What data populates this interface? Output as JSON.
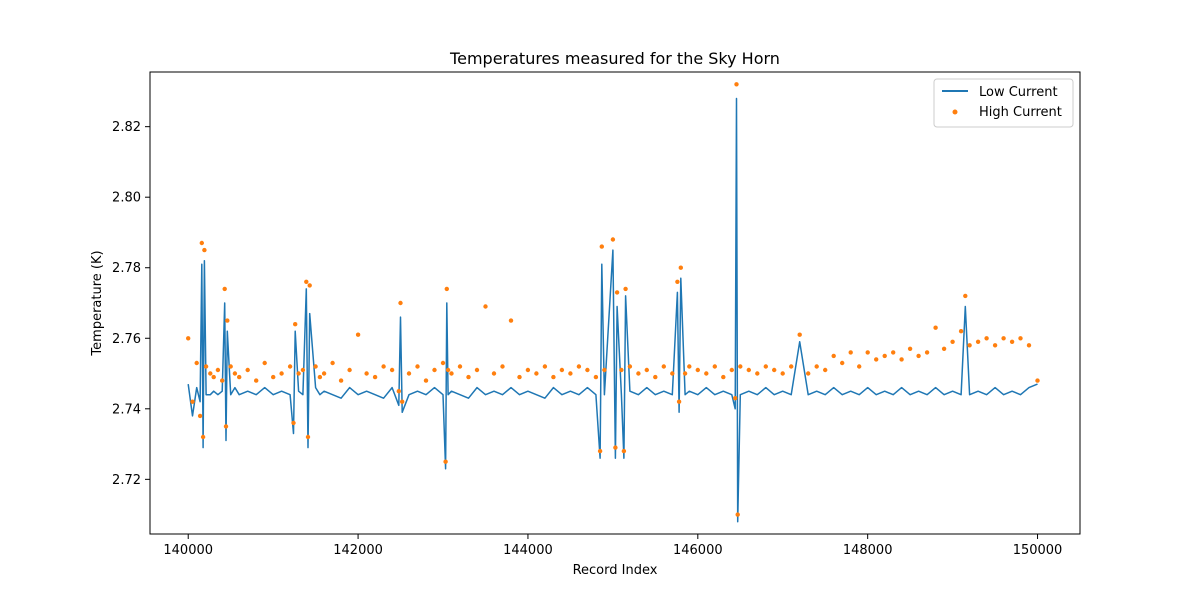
{
  "chart_data": {
    "type": "line",
    "title": "Temperatures measured for the Sky Horn",
    "xlabel": "Record Index",
    "ylabel": "Temperature (K)",
    "xlim": [
      139550,
      150500
    ],
    "ylim": [
      2.7045,
      2.8355
    ],
    "xticks": [
      140000,
      142000,
      144000,
      146000,
      148000,
      150000
    ],
    "xtick_labels": [
      "140000",
      "142000",
      "144000",
      "146000",
      "148000",
      "150000"
    ],
    "yticks": [
      2.72,
      2.74,
      2.76,
      2.78,
      2.8,
      2.82
    ],
    "ytick_labels": [
      "2.72",
      "2.74",
      "2.76",
      "2.78",
      "2.80",
      "2.82"
    ],
    "grid": false,
    "legend_position": "upper right",
    "series": [
      {
        "name": "Low Current",
        "style": "line",
        "color": "#1f77b4",
        "x": [
          140000,
          140050,
          140100,
          140140,
          140160,
          140175,
          140190,
          140210,
          140260,
          140300,
          140350,
          140400,
          140430,
          140445,
          140460,
          140500,
          140550,
          140600,
          140700,
          140800,
          140900,
          141000,
          141100,
          141200,
          141240,
          141260,
          141300,
          141350,
          141390,
          141410,
          141430,
          141500,
          141550,
          141600,
          141700,
          141800,
          141900,
          142000,
          142100,
          142200,
          142300,
          142400,
          142480,
          142500,
          142520,
          142600,
          142700,
          142800,
          142900,
          143000,
          143030,
          143045,
          143060,
          143100,
          143200,
          143300,
          143400,
          143500,
          143600,
          143700,
          143800,
          143900,
          144000,
          144100,
          144200,
          144300,
          144400,
          144500,
          144600,
          144700,
          144800,
          144850,
          144870,
          144900,
          145000,
          145030,
          145050,
          145100,
          145130,
          145150,
          145200,
          145300,
          145400,
          145500,
          145600,
          145700,
          145760,
          145780,
          145800,
          145850,
          145900,
          146000,
          146100,
          146200,
          146300,
          146400,
          146440,
          146455,
          146470,
          146500,
          146600,
          146700,
          146800,
          146900,
          147000,
          147100,
          147200,
          147300,
          147400,
          147500,
          147600,
          147700,
          147800,
          147900,
          148000,
          148100,
          148200,
          148300,
          148400,
          148500,
          148600,
          148700,
          148800,
          148900,
          149000,
          149100,
          149150,
          149200,
          149300,
          149400,
          149500,
          149600,
          149700,
          149800,
          149900,
          150000
        ],
        "y": [
          2.747,
          2.738,
          2.746,
          2.742,
          2.781,
          2.729,
          2.782,
          2.744,
          2.744,
          2.745,
          2.744,
          2.745,
          2.77,
          2.731,
          2.762,
          2.744,
          2.746,
          2.744,
          2.745,
          2.744,
          2.746,
          2.744,
          2.745,
          2.744,
          2.733,
          2.762,
          2.745,
          2.744,
          2.774,
          2.729,
          2.767,
          2.746,
          2.744,
          2.745,
          2.744,
          2.743,
          2.746,
          2.744,
          2.745,
          2.744,
          2.743,
          2.746,
          2.741,
          2.766,
          2.739,
          2.744,
          2.745,
          2.744,
          2.746,
          2.744,
          2.723,
          2.77,
          2.744,
          2.745,
          2.744,
          2.743,
          2.746,
          2.744,
          2.745,
          2.744,
          2.746,
          2.744,
          2.745,
          2.744,
          2.743,
          2.746,
          2.744,
          2.745,
          2.744,
          2.746,
          2.744,
          2.726,
          2.781,
          2.744,
          2.785,
          2.726,
          2.769,
          2.744,
          2.726,
          2.772,
          2.745,
          2.744,
          2.746,
          2.744,
          2.745,
          2.744,
          2.773,
          2.739,
          2.777,
          2.744,
          2.745,
          2.744,
          2.746,
          2.744,
          2.745,
          2.744,
          2.74,
          2.828,
          2.708,
          2.744,
          2.745,
          2.744,
          2.746,
          2.744,
          2.745,
          2.744,
          2.759,
          2.744,
          2.745,
          2.744,
          2.746,
          2.744,
          2.745,
          2.744,
          2.746,
          2.744,
          2.745,
          2.744,
          2.746,
          2.744,
          2.745,
          2.744,
          2.746,
          2.744,
          2.745,
          2.744,
          2.769,
          2.744,
          2.745,
          2.744,
          2.746,
          2.744,
          2.745,
          2.744,
          2.746,
          2.747
        ]
      },
      {
        "name": "High Current",
        "style": "scatter",
        "color": "#ff7f0e",
        "x": [
          140000,
          140050,
          140100,
          140140,
          140160,
          140175,
          140190,
          140210,
          140260,
          140300,
          140350,
          140400,
          140430,
          140445,
          140460,
          140500,
          140550,
          140600,
          140700,
          140800,
          140900,
          141000,
          141100,
          141200,
          141240,
          141260,
          141300,
          141350,
          141390,
          141410,
          141430,
          141500,
          141550,
          141600,
          141700,
          141800,
          141900,
          142000,
          142100,
          142200,
          142300,
          142400,
          142480,
          142500,
          142520,
          142600,
          142700,
          142800,
          142900,
          143000,
          143030,
          143045,
          143060,
          143100,
          143200,
          143300,
          143400,
          143500,
          143600,
          143700,
          143800,
          143900,
          144000,
          144100,
          144200,
          144300,
          144400,
          144500,
          144600,
          144700,
          144800,
          144850,
          144870,
          144900,
          145000,
          145030,
          145050,
          145100,
          145130,
          145150,
          145200,
          145300,
          145400,
          145500,
          145600,
          145700,
          145760,
          145780,
          145800,
          145850,
          145900,
          146000,
          146100,
          146200,
          146300,
          146400,
          146440,
          146455,
          146470,
          146500,
          146600,
          146700,
          146800,
          146900,
          147000,
          147100,
          147200,
          147300,
          147400,
          147500,
          147600,
          147700,
          147800,
          147900,
          148000,
          148100,
          148200,
          148300,
          148400,
          148500,
          148600,
          148700,
          148800,
          148900,
          149000,
          149100,
          149150,
          149200,
          149300,
          149400,
          149500,
          149600,
          149700,
          149800,
          149900,
          150000
        ],
        "y": [
          2.76,
          2.742,
          2.753,
          2.738,
          2.787,
          2.732,
          2.785,
          2.752,
          2.75,
          2.749,
          2.751,
          2.748,
          2.774,
          2.735,
          2.765,
          2.752,
          2.75,
          2.749,
          2.751,
          2.748,
          2.753,
          2.749,
          2.75,
          2.752,
          2.736,
          2.764,
          2.75,
          2.751,
          2.776,
          2.732,
          2.775,
          2.752,
          2.749,
          2.75,
          2.753,
          2.748,
          2.751,
          2.761,
          2.75,
          2.749,
          2.752,
          2.751,
          2.745,
          2.77,
          2.742,
          2.75,
          2.752,
          2.748,
          2.751,
          2.753,
          2.725,
          2.774,
          2.751,
          2.75,
          2.752,
          2.749,
          2.751,
          2.769,
          2.75,
          2.752,
          2.765,
          2.749,
          2.751,
          2.75,
          2.752,
          2.749,
          2.751,
          2.75,
          2.752,
          2.751,
          2.749,
          2.728,
          2.786,
          2.751,
          2.788,
          2.729,
          2.773,
          2.751,
          2.728,
          2.774,
          2.752,
          2.75,
          2.751,
          2.749,
          2.752,
          2.75,
          2.776,
          2.742,
          2.78,
          2.75,
          2.752,
          2.751,
          2.75,
          2.752,
          2.749,
          2.751,
          2.743,
          2.832,
          2.71,
          2.752,
          2.751,
          2.75,
          2.752,
          2.751,
          2.75,
          2.752,
          2.761,
          2.75,
          2.752,
          2.751,
          2.755,
          2.753,
          2.756,
          2.752,
          2.756,
          2.754,
          2.755,
          2.756,
          2.754,
          2.757,
          2.755,
          2.756,
          2.763,
          2.757,
          2.759,
          2.762,
          2.772,
          2.758,
          2.759,
          2.76,
          2.758,
          2.76,
          2.759,
          2.76,
          2.758,
          2.748
        ]
      }
    ]
  }
}
